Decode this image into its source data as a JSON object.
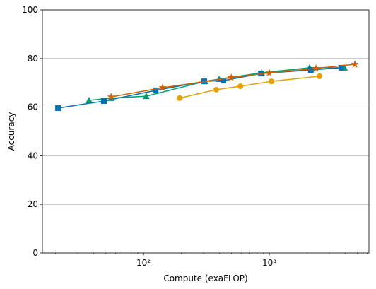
{
  "chart_data": {
    "type": "line",
    "xlabel": "Compute (exaFLOP)",
    "ylabel": "Accuracy",
    "xscale": "log",
    "xlim": [
      15.7,
      6200
    ],
    "ylim": [
      0,
      100
    ],
    "xticks": [
      {
        "value": 100,
        "label": "10²"
      },
      {
        "value": 1000,
        "label": "10³"
      }
    ],
    "xminorticks": [
      20,
      30,
      40,
      50,
      60,
      70,
      80,
      90,
      200,
      300,
      400,
      500,
      600,
      700,
      800,
      900,
      2000,
      3000,
      4000,
      5000,
      6000
    ],
    "yticks": [
      0,
      20,
      40,
      60,
      80,
      100
    ],
    "grid": "y",
    "series": [
      {
        "color": "#e69f00",
        "marker": "circle",
        "x": [
          194,
          379,
          589,
          1040,
          2510
        ],
        "values": [
          63.7,
          67.2,
          68.6,
          70.6,
          72.7
        ]
      },
      {
        "color": "#009e73",
        "marker": "triangle",
        "x": [
          36.9,
          55.2,
          105,
          308,
          399,
          867,
          2090,
          3950
        ],
        "values": [
          62.8,
          63.7,
          64.5,
          70.6,
          71.5,
          74.1,
          76.2,
          76.2
        ]
      },
      {
        "color": "#0072b2",
        "marker": "square",
        "x": [
          20.9,
          48.4,
          125,
          304,
          431,
          858,
          2140,
          3740
        ],
        "values": [
          59.6,
          62.5,
          66.9,
          70.6,
          70.9,
          73.8,
          75.3,
          76.2
        ]
      },
      {
        "color": "#d55e00",
        "marker": "star",
        "x": [
          55.2,
          142,
          498,
          1000,
          2350,
          4790
        ],
        "values": [
          64.2,
          68.0,
          72.1,
          74.1,
          75.9,
          77.6
        ]
      }
    ]
  }
}
